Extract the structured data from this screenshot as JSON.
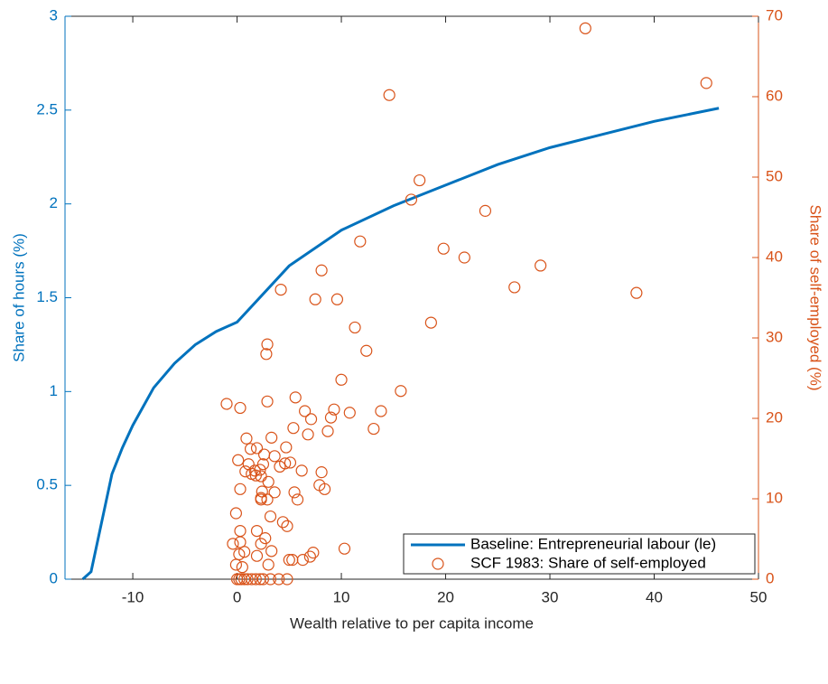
{
  "chart_data": {
    "type": "line-scatter",
    "x_label": "Wealth relative to per capita income",
    "y_label": "Share of hours (%)",
    "y2_label": "Share of self-employed (%)",
    "xlim": [
      -16.5,
      50
    ],
    "xticks": [
      -10,
      0,
      10,
      20,
      30,
      40,
      50
    ],
    "ylim": [
      0,
      3
    ],
    "yticks": [
      0,
      0.5,
      1,
      1.5,
      2,
      2.5,
      3
    ],
    "y2lim": [
      0,
      70
    ],
    "y2ticks": [
      0,
      10,
      20,
      30,
      40,
      50,
      60,
      70
    ],
    "legend": "lower right",
    "series": [
      {
        "name": "Baseline: Entrepreneurial labour (le)",
        "type": "line",
        "color": "#0072BD",
        "x": [
          -14.8,
          -14,
          -13,
          -12,
          -11,
          -10,
          -8,
          -6,
          -4,
          -2,
          0,
          5,
          10,
          15,
          20,
          25,
          30,
          35,
          40,
          46.2
        ],
        "values": [
          0,
          0.04,
          0.3,
          0.56,
          0.7,
          0.82,
          1.02,
          1.15,
          1.25,
          1.32,
          1.37,
          1.67,
          1.86,
          1.99,
          2.1,
          2.21,
          2.3,
          2.37,
          2.44,
          2.51
        ]
      },
      {
        "name": "SCF 1983: Share of self-employed",
        "type": "scatter",
        "color": "#D95319",
        "axis": "y2",
        "x": [
          -1.0,
          14.6,
          33.4,
          45.0,
          17.5,
          16.7,
          23.8,
          19.8,
          21.8,
          29.1,
          26.6,
          38.3,
          11.8,
          8.1,
          4.2,
          7.5,
          9.6,
          2.9,
          2.8,
          11.3,
          12.4,
          10.0,
          18.6,
          15.7,
          13.8,
          13.1,
          10.8,
          9.3,
          9.0,
          8.7,
          2.9,
          5.6,
          6.5,
          5.4,
          7.1,
          6.8,
          3.3,
          3.6,
          0.3,
          0.9,
          0.1,
          0.8,
          1.4,
          1.7,
          1.8,
          2.3,
          2.4,
          2.9,
          3.2,
          4.4,
          4.8,
          6.2,
          5.5,
          5.8,
          7.9,
          8.4,
          8.1,
          10.3,
          3.6,
          2.3,
          0.3,
          -0.1,
          0.3,
          -0.1,
          0.2,
          -0.4,
          0.3,
          0.5,
          0.7,
          1.9,
          2.3,
          2.7,
          1.9,
          3.3,
          3.0,
          5.0,
          5.3,
          6.3,
          7.0,
          7.3,
          1.3,
          1.9,
          1.1,
          2.2,
          2.5,
          2.6,
          4.1,
          4.7,
          5.1,
          3.0,
          4.6,
          2.3,
          0,
          0.2,
          0.4,
          0.7,
          1.0,
          1.4,
          1.8,
          2.2,
          2.5,
          3.2,
          4.0,
          4.8
        ],
        "values": [
          21.8,
          60.2,
          68.5,
          61.7,
          49.6,
          47.2,
          45.8,
          41.1,
          40.0,
          39.0,
          36.3,
          35.6,
          42.0,
          38.4,
          36.0,
          34.8,
          34.8,
          29.2,
          28.0,
          31.3,
          28.4,
          24.8,
          31.9,
          23.4,
          20.9,
          18.7,
          20.7,
          21.1,
          20.1,
          18.4,
          22.1,
          22.6,
          20.9,
          18.8,
          19.9,
          18.0,
          17.6,
          15.3,
          21.3,
          17.5,
          14.8,
          13.4,
          13.1,
          13.5,
          12.9,
          12.8,
          10.9,
          9.9,
          7.8,
          7.1,
          6.6,
          13.5,
          10.8,
          9.9,
          11.7,
          11.2,
          13.3,
          3.8,
          10.8,
          9.9,
          11.2,
          8.2,
          4.6,
          1.8,
          3.1,
          4.4,
          6.0,
          1.5,
          3.4,
          6.0,
          4.4,
          5.1,
          2.9,
          3.5,
          1.8,
          2.4,
          2.4,
          2.4,
          2.8,
          3.3,
          16.2,
          16.3,
          14.3,
          13.6,
          14.3,
          15.5,
          14.0,
          16.4,
          14.5,
          12.1,
          14.4,
          10.1,
          0,
          0,
          0,
          0,
          0,
          0,
          0,
          0,
          0,
          0,
          0,
          0
        ]
      }
    ]
  }
}
